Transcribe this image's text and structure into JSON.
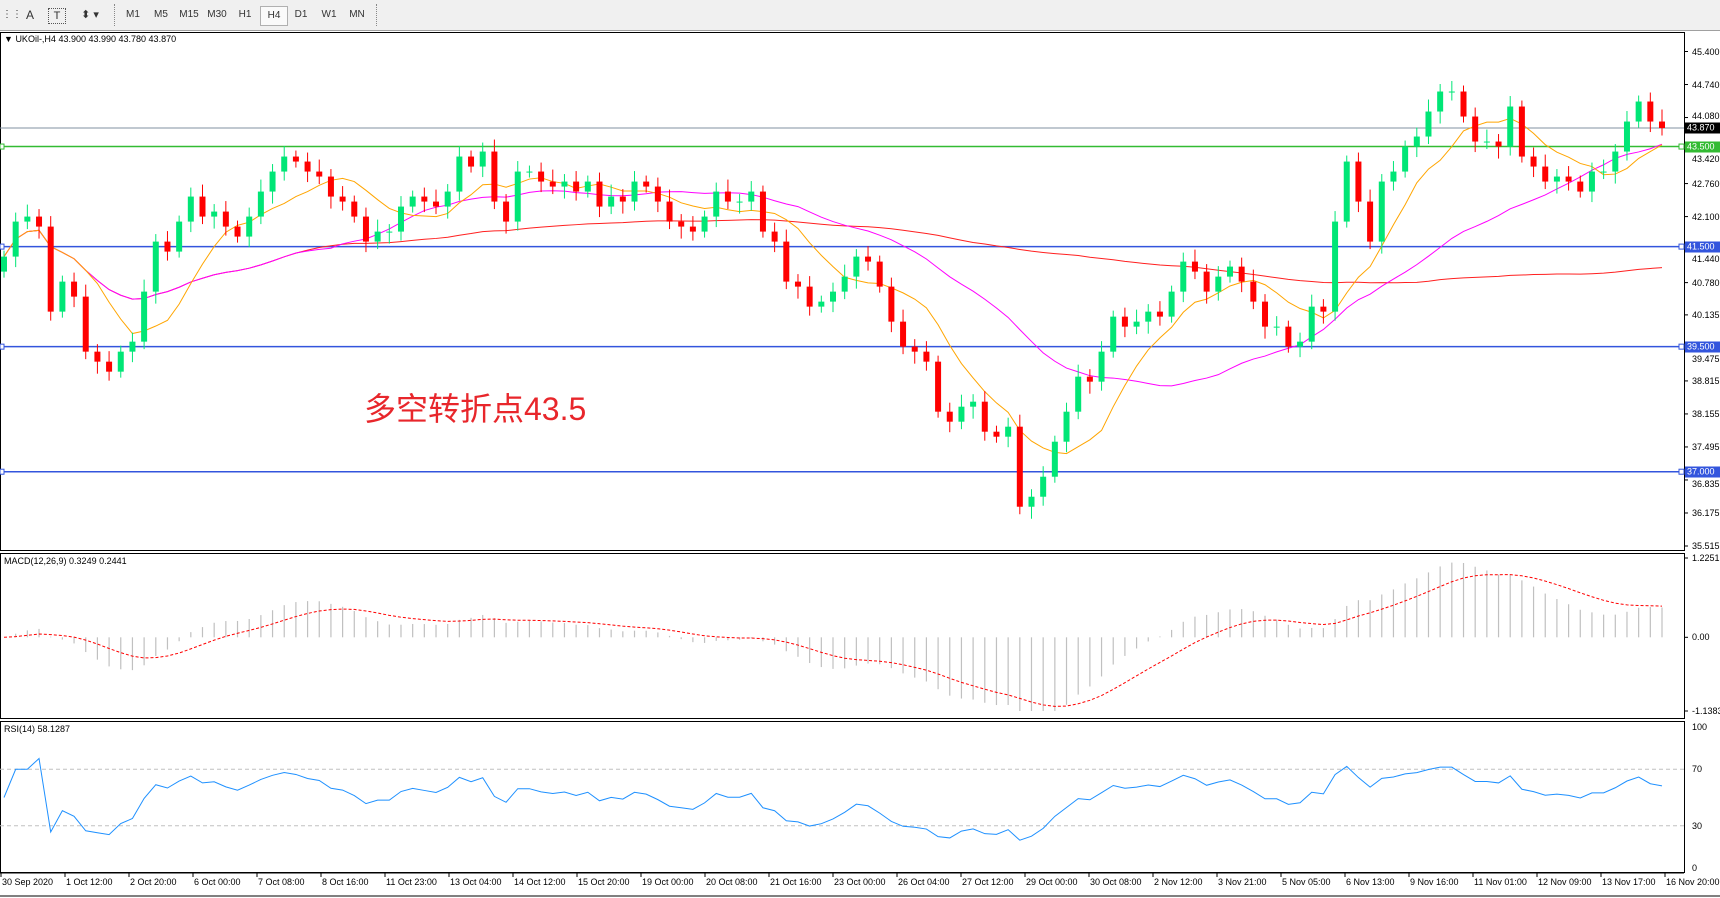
{
  "toolbar": {
    "tools": [
      {
        "name": "text-tool",
        "glyph": "A"
      },
      {
        "name": "text-label-tool",
        "glyph": "T"
      },
      {
        "name": "arrows-tool",
        "glyph": "⬍"
      }
    ],
    "timeframes": [
      "M1",
      "M5",
      "M15",
      "M30",
      "H1",
      "H4",
      "D1",
      "W1",
      "MN"
    ],
    "active_timeframe": "H4"
  },
  "chart_header": {
    "symbol": "UKOil-,H4",
    "ohlc": "43.900 43.990 43.780 43.870"
  },
  "annotation": "多空转折点43.5",
  "colors": {
    "bull": "#00e676",
    "bear": "#ff0000",
    "ma_fast": "#ffa500",
    "ma_mid": "#ff00ff",
    "ma_slow": "#ff2020",
    "support": "#3355dd",
    "pivot": "#33bb33",
    "rsi": "#1e90ff",
    "macd_signal": "#ff0000",
    "macd_hist": "#c0c0c0"
  },
  "chart_data": [
    {
      "type": "candlestick",
      "title": "UKOil-,H4",
      "ylim": [
        35.515,
        45.4
      ],
      "y_ticks": [
        "45.400",
        "44.740",
        "44.080",
        "43.420",
        "42.760",
        "42.100",
        "41.440",
        "40.780",
        "40.135",
        "39.475",
        "38.815",
        "38.155",
        "37.495",
        "36.835",
        "36.175",
        "35.515"
      ],
      "x_ticks": [
        "30 Sep 2020",
        "1 Oct 12:00",
        "2 Oct 20:00",
        "6 Oct 00:00",
        "7 Oct 08:00",
        "8 Oct 16:00",
        "11 Oct 23:00",
        "13 Oct 04:00",
        "14 Oct 12:00",
        "15 Oct 20:00",
        "19 Oct 00:00",
        "20 Oct 08:00",
        "21 Oct 16:00",
        "23 Oct 00:00",
        "26 Oct 04:00",
        "27 Oct 12:00",
        "29 Oct 00:00",
        "30 Oct 08:00",
        "2 Nov 12:00",
        "3 Nov 21:00",
        "5 Nov 05:00",
        "6 Nov 13:00",
        "9 Nov 16:00",
        "11 Nov 01:00",
        "12 Nov 09:00",
        "13 Nov 17:00",
        "16 Nov 20:00"
      ],
      "current_price": "43.870",
      "levels": [
        {
          "value": 43.5,
          "label": "43.500",
          "color": "#33bb33"
        },
        {
          "value": 41.5,
          "label": "41.500",
          "color": "#3355dd"
        },
        {
          "value": 39.5,
          "label": "39.500",
          "color": "#3355dd"
        },
        {
          "value": 37.0,
          "label": "37.000",
          "color": "#3355dd"
        }
      ],
      "closes": [
        41.3,
        42.0,
        42.1,
        41.9,
        40.2,
        40.8,
        40.5,
        39.4,
        39.2,
        39.0,
        39.4,
        39.6,
        40.6,
        41.6,
        41.4,
        42.0,
        42.5,
        42.1,
        42.2,
        41.9,
        41.7,
        42.1,
        42.6,
        43.0,
        43.3,
        43.2,
        43.0,
        42.9,
        42.5,
        42.4,
        42.1,
        41.6,
        41.8,
        41.8,
        42.3,
        42.5,
        42.4,
        42.3,
        42.6,
        43.3,
        43.1,
        43.4,
        42.4,
        42.0,
        43.0,
        43.0,
        42.8,
        42.7,
        42.8,
        42.6,
        42.8,
        42.3,
        42.5,
        42.4,
        42.8,
        42.7,
        42.4,
        42.0,
        41.9,
        41.8,
        42.1,
        42.6,
        42.4,
        42.4,
        42.6,
        41.8,
        41.6,
        40.8,
        40.7,
        40.3,
        40.4,
        40.6,
        40.9,
        41.3,
        41.2,
        40.7,
        40.0,
        39.5,
        39.4,
        39.2,
        38.2,
        38.0,
        38.3,
        38.4,
        37.8,
        37.7,
        37.9,
        36.3,
        36.5,
        36.9,
        37.6,
        38.2,
        38.9,
        38.8,
        39.4,
        40.1,
        39.9,
        40.0,
        40.2,
        40.1,
        40.6,
        41.2,
        41.0,
        40.6,
        40.9,
        41.1,
        40.8,
        40.4,
        39.9,
        39.9,
        39.5,
        39.6,
        40.3,
        40.2,
        42.0,
        43.2,
        42.4,
        41.6,
        42.8,
        43.0,
        43.5,
        43.7,
        44.2,
        44.6,
        44.6,
        44.1,
        43.6,
        43.6,
        43.5,
        44.3,
        43.3,
        43.1,
        42.8,
        42.9,
        42.8,
        42.6,
        43.0,
        43.0,
        43.4,
        44.0,
        44.4,
        44.0,
        43.87
      ]
    },
    {
      "type": "line",
      "title": "MACD(12,26,9)",
      "values_text": "0.3249 0.2441",
      "ylim": [
        -1.1383,
        1.2251
      ],
      "y_ticks": [
        "1.2251",
        "0.00",
        "-1.1383"
      ]
    },
    {
      "type": "line",
      "title": "RSI(14)",
      "values_text": "58.1287",
      "ylim": [
        0,
        100
      ],
      "y_ticks": [
        "100",
        "70",
        "30",
        "0"
      ],
      "levels": [
        70,
        30
      ]
    }
  ]
}
